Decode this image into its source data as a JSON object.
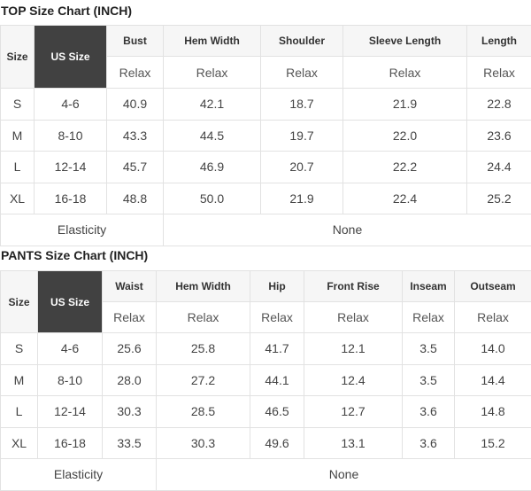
{
  "top": {
    "title": "TOP Size Chart (INCH)",
    "size_header": "Size",
    "us_size_header": "US Size",
    "columns": [
      "Bust",
      "Hem Width",
      "Shoulder",
      "Sleeve Length",
      "Length"
    ],
    "sub_label": "Relax",
    "rows": [
      {
        "size": "S",
        "us": "4-6",
        "values": [
          "40.9",
          "42.1",
          "18.7",
          "21.9",
          "22.8"
        ]
      },
      {
        "size": "M",
        "us": "8-10",
        "values": [
          "43.3",
          "44.5",
          "19.7",
          "22.0",
          "23.6"
        ]
      },
      {
        "size": "L",
        "us": "12-14",
        "values": [
          "45.7",
          "46.9",
          "20.7",
          "22.2",
          "24.4"
        ]
      },
      {
        "size": "XL",
        "us": "16-18",
        "values": [
          "48.8",
          "50.0",
          "21.9",
          "22.4",
          "25.2"
        ]
      }
    ],
    "elasticity_label": "Elasticity",
    "elasticity_value": "None"
  },
  "pants": {
    "title": "PANTS Size Chart (INCH)",
    "size_header": "Size",
    "us_size_header": "US Size",
    "columns": [
      "Waist",
      "Hem Width",
      "Hip",
      "Front Rise",
      "Inseam",
      "Outseam"
    ],
    "sub_label": "Relax",
    "rows": [
      {
        "size": "S",
        "us": "4-6",
        "values": [
          "25.6",
          "25.8",
          "41.7",
          "12.1",
          "3.5",
          "14.0"
        ]
      },
      {
        "size": "M",
        "us": "8-10",
        "values": [
          "28.0",
          "27.2",
          "44.1",
          "12.4",
          "3.5",
          "14.4"
        ]
      },
      {
        "size": "L",
        "us": "12-14",
        "values": [
          "30.3",
          "28.5",
          "46.5",
          "12.7",
          "3.6",
          "14.8"
        ]
      },
      {
        "size": "XL",
        "us": "16-18",
        "values": [
          "33.5",
          "30.3",
          "49.6",
          "13.1",
          "3.6",
          "15.2"
        ]
      }
    ],
    "elasticity_label": "Elasticity",
    "elasticity_value": "None"
  },
  "colors": {
    "us_size_header_bg": "#414141",
    "header_bg": "#f6f6f6",
    "border": "#e2e2e2"
  }
}
